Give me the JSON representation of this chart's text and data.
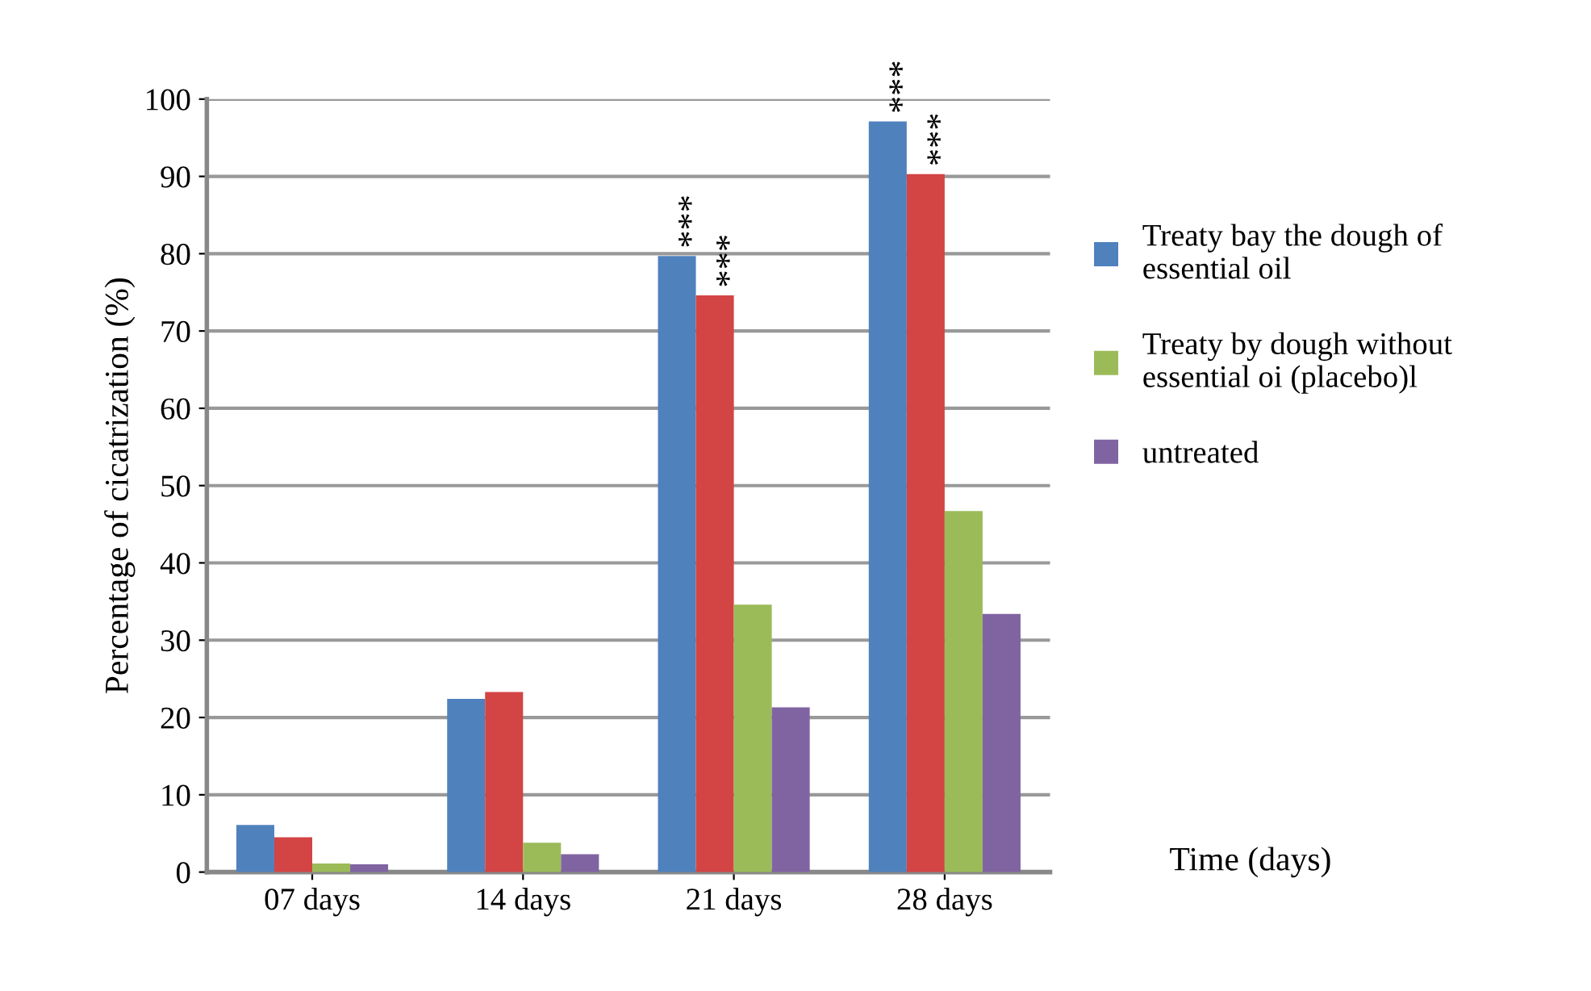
{
  "chart_data": {
    "type": "bar",
    "ylabel": "Percentage of cicatrization (%)",
    "xlabel": "Time (days)",
    "categories": [
      "07 days",
      "14 days",
      "21 days",
      "28 days"
    ],
    "series": [
      {
        "name": "Treaty bay the dough of essential oil",
        "color": "#4f81bd",
        "values": [
          6.1,
          22.4,
          79.7,
          97.1
        ]
      },
      {
        "color": "#d34444",
        "values": [
          4.5,
          23.3,
          74.6,
          90.3
        ]
      },
      {
        "name": "Treaty by dough without essential oi (placebo)l",
        "color": "#9bbb59",
        "values": [
          1.1,
          3.8,
          34.6,
          46.7
        ]
      },
      {
        "name": "untreated",
        "color": "#8064a2",
        "values": [
          1.0,
          2.3,
          21.3,
          33.4
        ]
      }
    ],
    "ylim": [
      0,
      100
    ],
    "yticks": [
      0,
      10,
      20,
      30,
      40,
      50,
      60,
      70,
      80,
      90,
      100
    ],
    "grid": "y",
    "legend": "right",
    "annotations": [
      "***",
      "***",
      "***",
      "***"
    ]
  }
}
